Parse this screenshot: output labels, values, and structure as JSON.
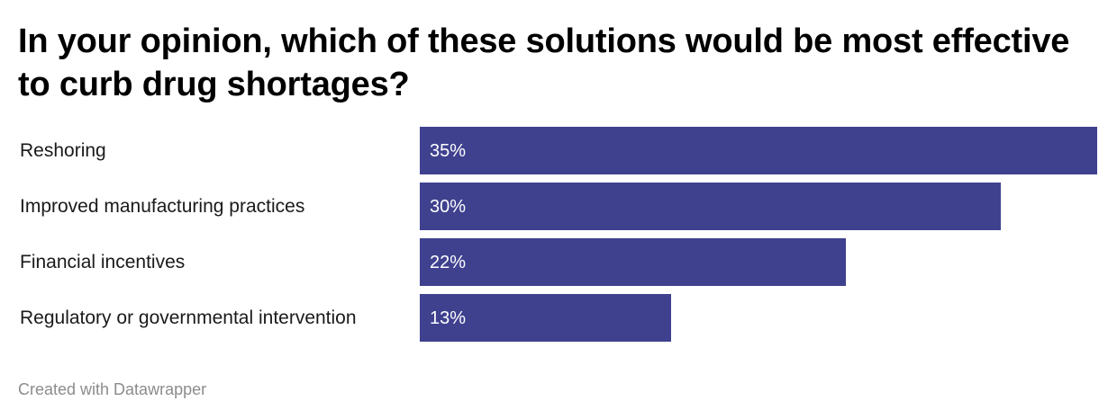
{
  "title": "In your opinion, which of these solutions would be most effective to curb drug shortages?",
  "footer": "Created with Datawrapper",
  "colors": {
    "bar": "#3f418f",
    "bar_label": "#ffffff",
    "footer": "#8c8c8c"
  },
  "chart_data": {
    "type": "bar",
    "orientation": "horizontal",
    "categories": [
      "Reshoring",
      "Improved manufacturing practices",
      "Financial incentives",
      "Regulatory or governmental intervention"
    ],
    "values": [
      35,
      30,
      22,
      13
    ],
    "value_labels": [
      "35%",
      "30%",
      "22%",
      "13%"
    ],
    "unit": "%",
    "xlim": [
      0,
      35
    ],
    "grid": false,
    "legend": "none"
  }
}
